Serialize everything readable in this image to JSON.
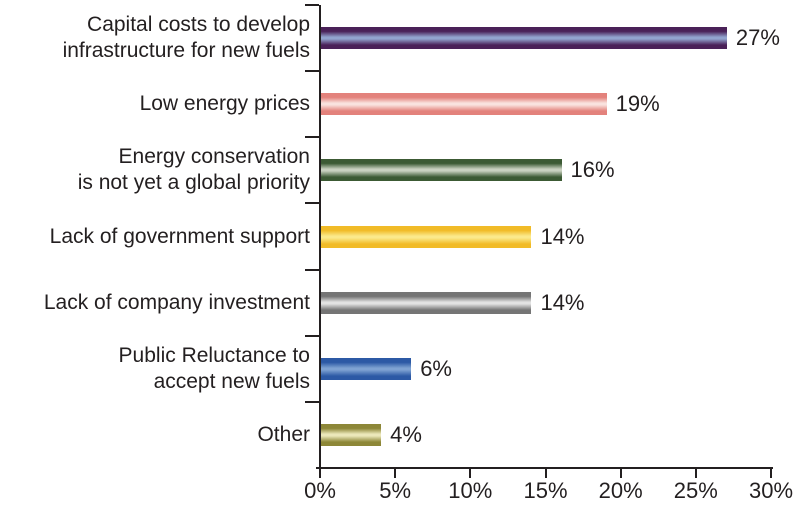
{
  "chart_data": {
    "type": "bar",
    "orientation": "horizontal",
    "title": "",
    "xlabel": "",
    "ylabel": "",
    "grid": false,
    "legend": false,
    "xlim": [
      0,
      30
    ],
    "x_ticks": [
      0,
      5,
      10,
      15,
      20,
      25,
      30
    ],
    "x_tick_labels": [
      "0%",
      "5%",
      "10%",
      "15%",
      "20%",
      "25%",
      "30%"
    ],
    "categories": [
      "Capital costs to develop\ninfrastructure for new fuels",
      "Low energy prices",
      "Energy conservation\nis not yet a global priority",
      "Lack of government support",
      "Lack of company investment",
      "Public Reluctance to\naccept new fuels",
      "Other"
    ],
    "values": [
      27,
      19,
      16,
      14,
      14,
      6,
      4
    ],
    "value_labels": [
      "27%",
      "19%",
      "16%",
      "14%",
      "14%",
      "6%",
      "4%"
    ],
    "bar_colors": [
      {
        "name": "purple",
        "dark": "#4a2158",
        "light": "#92a3ce"
      },
      {
        "name": "salmon",
        "dark": "#e3827c",
        "light": "#f9e2de"
      },
      {
        "name": "green",
        "dark": "#3c5a34",
        "light": "#c9d1c0"
      },
      {
        "name": "yellow",
        "dark": "#f1bb27",
        "light": "#fbe98b"
      },
      {
        "name": "gray",
        "dark": "#757575",
        "light": "#e2e2e2"
      },
      {
        "name": "blue",
        "dark": "#2c59a5",
        "light": "#7ea2d2"
      },
      {
        "name": "olive",
        "dark": "#8d8738",
        "light": "#ebe7ba"
      }
    ],
    "axis_color": "#231f20",
    "text_color": "#231f20",
    "background_color": "#ffffff"
  }
}
